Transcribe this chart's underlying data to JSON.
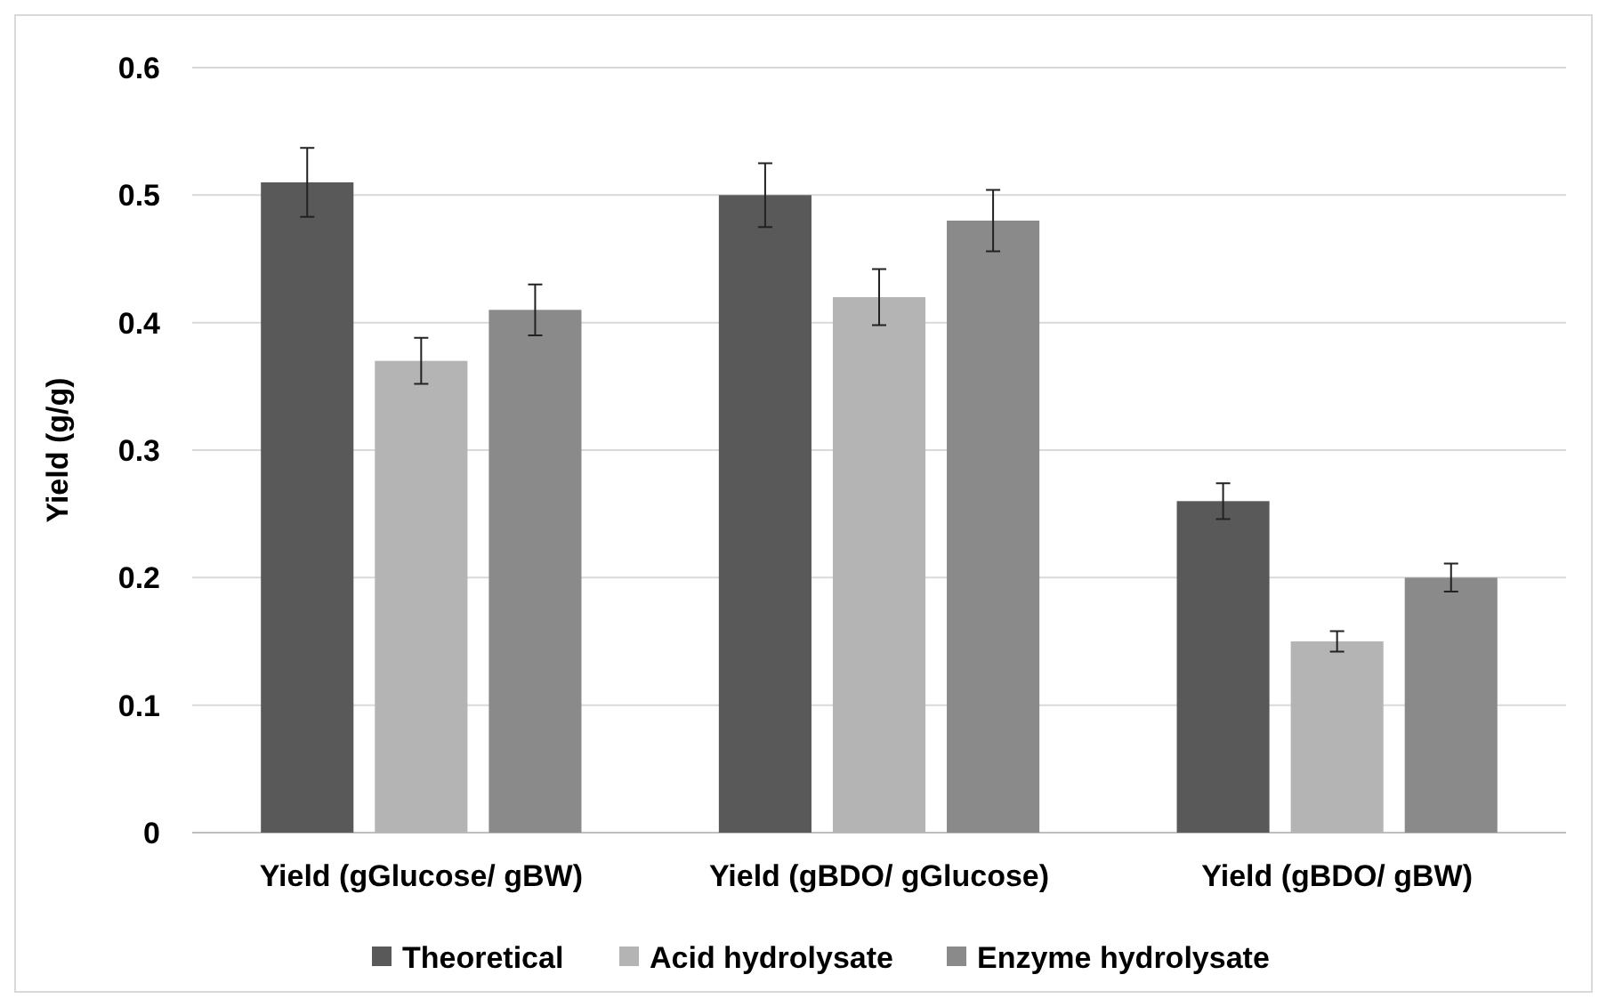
{
  "chart_data": {
    "type": "bar",
    "ylabel": "Yield (g/g)",
    "categories": [
      "Yield (gGlucose/ gBW)",
      "Yield (gBDO/ gGlucose)",
      "Yield (gBDO/ gBW)"
    ],
    "series": [
      {
        "name": "Theoretical",
        "color": "#595959",
        "values": [
          0.51,
          0.5,
          0.26
        ],
        "errors": [
          0.027,
          0.025,
          0.014
        ]
      },
      {
        "name": "Acid hydrolysate",
        "color": "#b4b4b4",
        "values": [
          0.37,
          0.42,
          0.15
        ],
        "errors": [
          0.018,
          0.022,
          0.008
        ]
      },
      {
        "name": "Enzyme hydrolysate",
        "color": "#8a8a8a",
        "values": [
          0.41,
          0.48,
          0.2
        ],
        "errors": [
          0.02,
          0.024,
          0.011
        ]
      }
    ],
    "ylim": [
      0,
      0.6
    ],
    "yticks": [
      {
        "value": 0,
        "label": "0"
      },
      0.1,
      0.2,
      0.3,
      0.4,
      0.5,
      0.6
    ],
    "grid": "y",
    "legend": "bottom"
  }
}
